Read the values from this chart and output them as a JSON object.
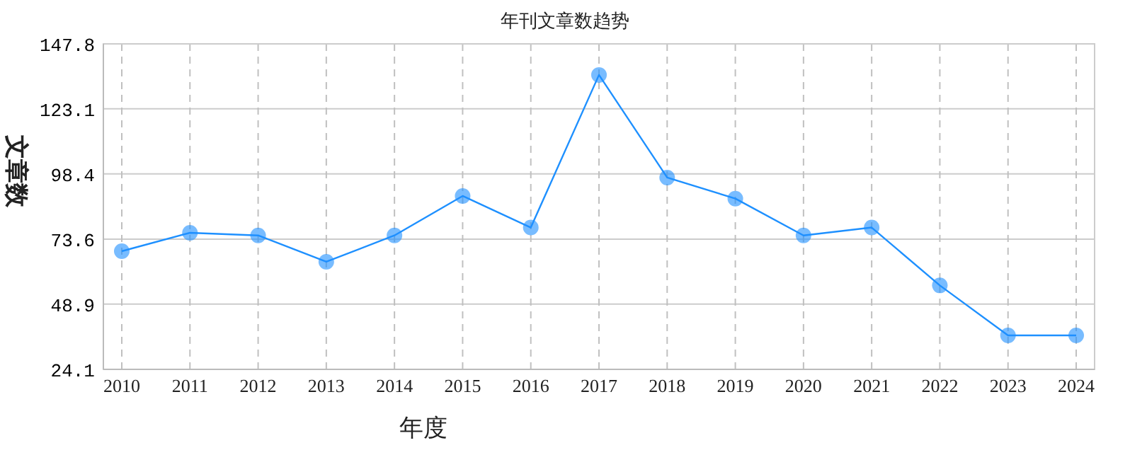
{
  "chart_data": {
    "type": "line",
    "title": "年刊文章数趋势",
    "xlabel": "年度",
    "ylabel": "文章数",
    "categories": [
      "2010",
      "2011",
      "2012",
      "2013",
      "2014",
      "2015",
      "2016",
      "2017",
      "2018",
      "2019",
      "2020",
      "2021",
      "2022",
      "2023",
      "2024"
    ],
    "series": [
      {
        "color": "#1e90ff",
        "values": [
          69,
          76,
          75,
          65,
          75,
          90,
          78,
          136,
          97,
          89,
          75,
          78,
          56,
          37,
          37
        ]
      }
    ],
    "ylim": [
      24.1,
      147.8
    ],
    "yticks": [
      24.1,
      48.9,
      73.6,
      98.4,
      123.1,
      147.8
    ],
    "grid": true,
    "marker": "circle",
    "line_style": "solid"
  }
}
